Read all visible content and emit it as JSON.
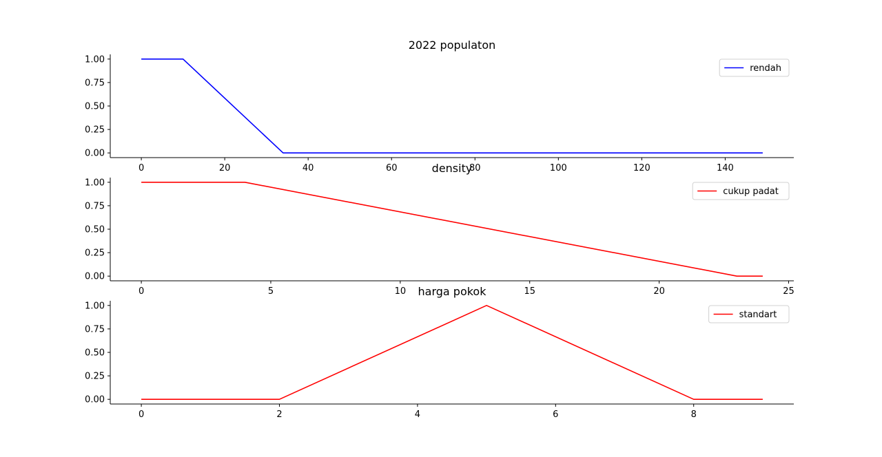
{
  "chart_data": [
    {
      "type": "line",
      "title": "2022 populaton",
      "xlabel": "",
      "ylabel": "",
      "xlim": [
        -7.45,
        156.45
      ],
      "ylim": [
        -0.05,
        1.05
      ],
      "xticks": [
        "0",
        "20",
        "40",
        "60",
        "80",
        "100",
        "120",
        "140"
      ],
      "yticks": [
        "0.00",
        "0.25",
        "0.50",
        "0.75",
        "1.00"
      ],
      "legend_position": "top-right",
      "grid": false,
      "series": [
        {
          "name": "rendah",
          "color": "#0000ff",
          "x": [
            0,
            10,
            34,
            149
          ],
          "y": [
            1.0,
            1.0,
            0.0,
            0.0
          ]
        }
      ]
    },
    {
      "type": "line",
      "title": "density",
      "xlabel": "",
      "ylabel": "",
      "xlim": [
        -1.2,
        25.2
      ],
      "ylim": [
        -0.05,
        1.05
      ],
      "xticks": [
        "0",
        "5",
        "10",
        "15",
        "20",
        "25"
      ],
      "yticks": [
        "0.00",
        "0.25",
        "0.50",
        "0.75",
        "1.00"
      ],
      "legend_position": "top-right",
      "grid": false,
      "series": [
        {
          "name": "cukup padat",
          "color": "#ff0000",
          "x": [
            0,
            4,
            23,
            24
          ],
          "y": [
            1.0,
            1.0,
            0.0,
            0.0
          ]
        }
      ]
    },
    {
      "type": "line",
      "title": "harga pokok",
      "xlabel": "",
      "ylabel": "",
      "xlim": [
        -0.45,
        9.45
      ],
      "ylim": [
        -0.05,
        1.05
      ],
      "xticks": [
        "0",
        "2",
        "4",
        "6",
        "8"
      ],
      "yticks": [
        "0.00",
        "0.25",
        "0.50",
        "0.75",
        "1.00"
      ],
      "legend_position": "top-right",
      "grid": false,
      "series": [
        {
          "name": "standart",
          "color": "#ff0000",
          "x": [
            0,
            2,
            5,
            8,
            9
          ],
          "y": [
            0.0,
            0.0,
            1.0,
            0.0,
            0.0
          ]
        }
      ]
    }
  ]
}
